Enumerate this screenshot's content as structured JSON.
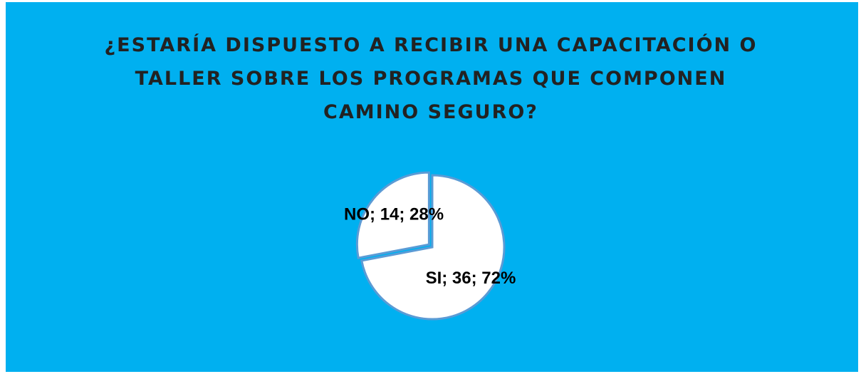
{
  "chart_data": {
    "type": "pie",
    "title": "¿ESTARÍA DISPUESTO A RECIBIR UNA CAPACITACIÓN O TALLER SOBRE LOS PROGRAMAS QUE COMPONEN CAMINO SEGURO?",
    "categories": [
      "SI",
      "NO"
    ],
    "values": [
      36,
      14
    ],
    "value_labels": [
      "SI; 36; 72%",
      "NO; 14; 28%"
    ],
    "colors": [
      "#ffffff",
      "#ffffff"
    ],
    "background": "#00b0f0"
  }
}
